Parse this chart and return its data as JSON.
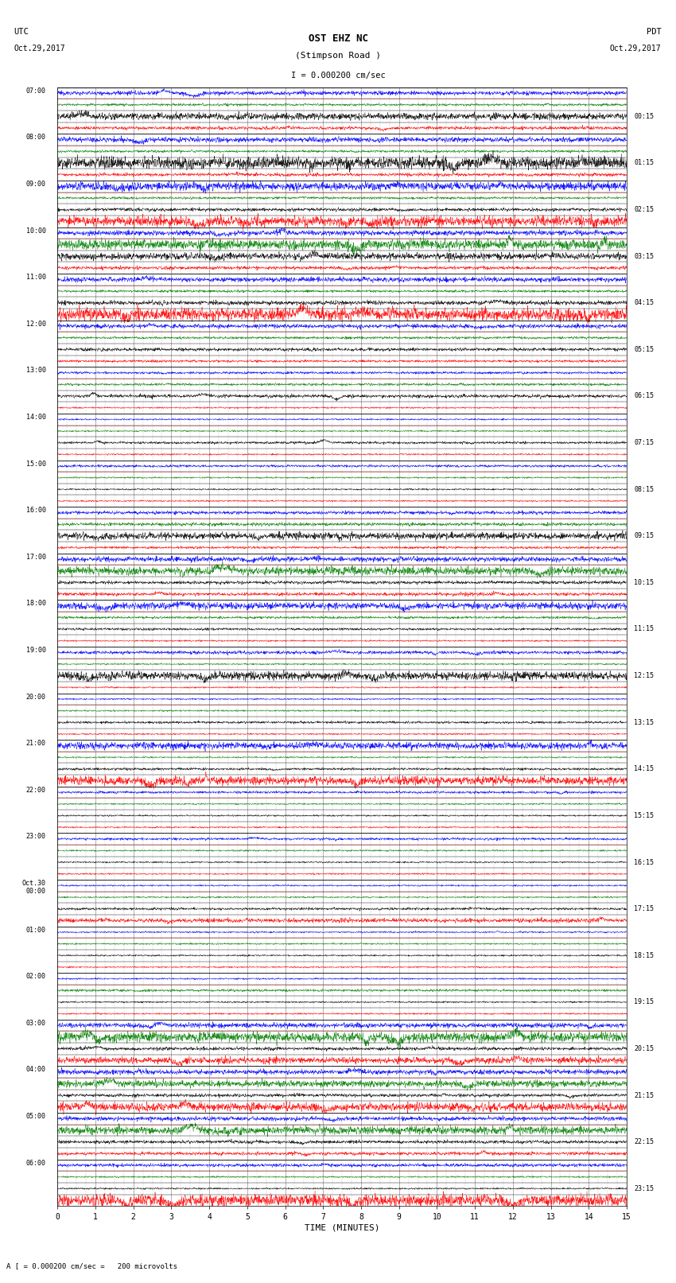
{
  "title_line1": "OST EHZ NC",
  "title_line2": "(Stimpson Road )",
  "scale_label": "I = 0.000200 cm/sec",
  "footer_label": "A [ = 0.000200 cm/sec =   200 microvolts",
  "xlabel": "TIME (MINUTES)",
  "xlim": [
    0,
    15
  ],
  "xticks": [
    0,
    1,
    2,
    3,
    4,
    5,
    6,
    7,
    8,
    9,
    10,
    11,
    12,
    13,
    14,
    15
  ],
  "bgcolor": "#ffffff",
  "grid_color_v": "#888888",
  "grid_color_h": "#000000",
  "sep_color": "#ff0000",
  "n_hours": 24,
  "traces_per_hour": 4,
  "colors_cycle": [
    "#0000ff",
    "#008000",
    "#000000",
    "#ff0000"
  ],
  "utc_times": [
    "07:00",
    "08:00",
    "09:00",
    "10:00",
    "11:00",
    "12:00",
    "13:00",
    "14:00",
    "15:00",
    "16:00",
    "17:00",
    "18:00",
    "19:00",
    "20:00",
    "21:00",
    "22:00",
    "23:00",
    "Oct.30\n00:00",
    "01:00",
    "02:00",
    "03:00",
    "04:00",
    "05:00",
    "06:00"
  ],
  "pdt_times": [
    "00:15",
    "01:15",
    "02:15",
    "03:15",
    "04:15",
    "05:15",
    "06:15",
    "07:15",
    "08:15",
    "09:15",
    "10:15",
    "11:15",
    "12:15",
    "13:15",
    "14:15",
    "15:15",
    "16:15",
    "17:15",
    "18:15",
    "19:15",
    "20:15",
    "21:15",
    "22:15",
    "23:15"
  ]
}
